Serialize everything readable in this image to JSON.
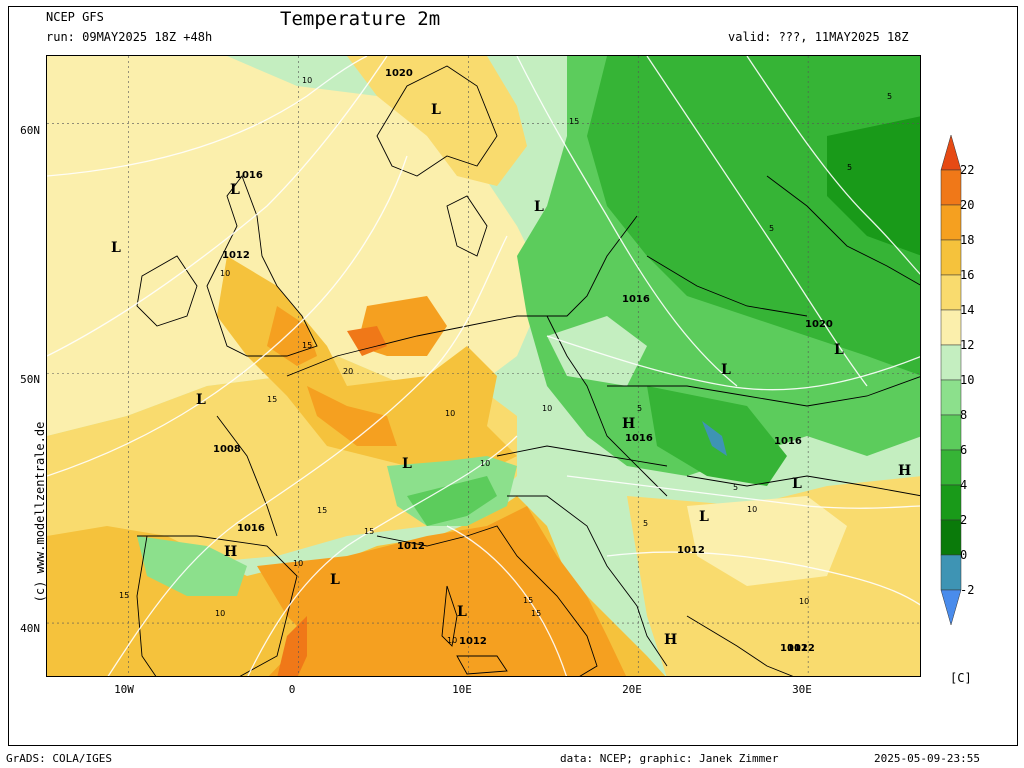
{
  "header": {
    "model": "NCEP GFS",
    "run": "run: 09MAY2025 18Z +48h",
    "title": "Temperature 2m",
    "valid": "valid: ???, 11MAY2025 18Z"
  },
  "axes": {
    "lat_ticks": [
      "60N",
      "50N",
      "40N"
    ],
    "lon_ticks": [
      "10W",
      "0",
      "10E",
      "20E",
      "30E"
    ]
  },
  "watermark": "(c) www.modellzentrale.de",
  "legend": {
    "unit": "[C]",
    "labels": [
      "22",
      "20",
      "18",
      "16",
      "14",
      "12",
      "10",
      "8",
      "6",
      "4",
      "2",
      "0",
      "-2"
    ],
    "colors": [
      "#e64a14",
      "#f07818",
      "#f5a020",
      "#f5c23c",
      "#f9db6e",
      "#fbefac",
      "#c4eec0",
      "#8ce08c",
      "#5ccc5c",
      "#36b436",
      "#199a19",
      "#0a7a0a",
      "#3e94b4",
      "#4a8cec"
    ]
  },
  "pressure_labels": {
    "values": [
      "1020",
      "1016",
      "1012",
      "1008",
      "1016",
      "1020",
      "1016",
      "1016",
      "1016",
      "1012",
      "1012",
      "1012",
      "1012",
      "1012"
    ],
    "systems": [
      "L",
      "L",
      "L",
      "L",
      "L",
      "L",
      "L",
      "L",
      "L",
      "L",
      "L",
      "L",
      "H",
      "H",
      "H",
      "H"
    ]
  },
  "temp_labels": [
    "10",
    "15",
    "10",
    "5",
    "5",
    "5",
    "15",
    "20",
    "15",
    "10",
    "10",
    "5",
    "15",
    "10",
    "5",
    "15",
    "10",
    "15",
    "10",
    "5",
    "10",
    "15",
    "10",
    "15",
    "10"
  ],
  "footer": {
    "left": "GrADS: COLA/IGES",
    "middle": "data: NCEP; graphic: Janek Zimmer",
    "right": "2025-05-09-23:55"
  }
}
